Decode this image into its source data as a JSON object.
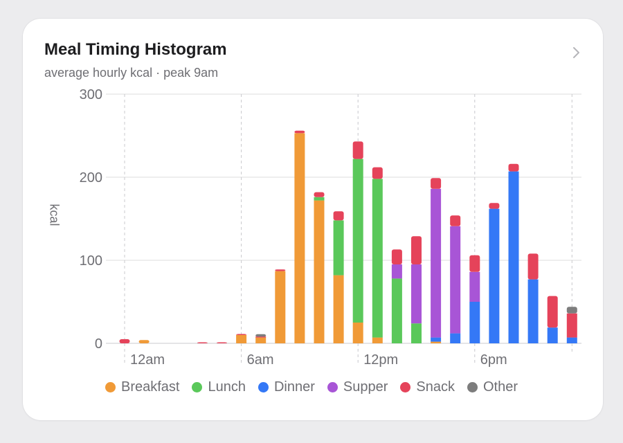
{
  "card": {
    "title": "Meal Timing Histogram",
    "subtitle": "average hourly kcal · peak 9am"
  },
  "chart_data": {
    "type": "bar",
    "stacked": true,
    "title": "Meal Timing Histogram",
    "subtitle": "average hourly kcal · peak 9am",
    "ylabel": "kcal",
    "xlabel": "",
    "ylim": [
      0,
      300
    ],
    "yticks": [
      0,
      100,
      200,
      300
    ],
    "xtick_labels": [
      {
        "hour": 0,
        "label": "12am"
      },
      {
        "hour": 6,
        "label": "6am"
      },
      {
        "hour": 12,
        "label": "12pm"
      },
      {
        "hour": 18,
        "label": "6pm"
      }
    ],
    "grid": true,
    "legend_position": "bottom",
    "hours": [
      0,
      1,
      2,
      3,
      4,
      5,
      6,
      7,
      8,
      9,
      10,
      11,
      12,
      13,
      14,
      15,
      16,
      17,
      18,
      19,
      20,
      21,
      22,
      23
    ],
    "series": [
      {
        "name": "Breakfast",
        "color": "#f09a37",
        "values": [
          0,
          4,
          0,
          0,
          0,
          0,
          10,
          7,
          87,
          253,
          172,
          82,
          25,
          7,
          0,
          0,
          2,
          0,
          0,
          0,
          0,
          0,
          0,
          0
        ]
      },
      {
        "name": "Lunch",
        "color": "#5ac85a",
        "values": [
          0,
          0,
          0,
          0,
          0,
          0,
          0,
          0,
          0,
          0,
          4,
          66,
          197,
          191,
          78,
          24,
          0,
          0,
          0,
          0,
          0,
          0,
          0,
          0
        ]
      },
      {
        "name": "Dinner",
        "color": "#3478f6",
        "values": [
          0,
          0,
          0,
          0,
          0,
          0,
          0,
          0,
          0,
          0,
          0,
          0,
          0,
          0,
          0,
          0,
          5,
          12,
          50,
          162,
          207,
          77,
          19,
          7
        ]
      },
      {
        "name": "Supper",
        "color": "#a855d6",
        "values": [
          0,
          0,
          0,
          0,
          0,
          0,
          0,
          0,
          0,
          0,
          0,
          0,
          0,
          0,
          17,
          71,
          179,
          129,
          36,
          0,
          0,
          0,
          0,
          0
        ]
      },
      {
        "name": "Snack",
        "color": "#e5435a",
        "values": [
          5,
          0,
          0,
          0,
          1,
          1,
          1,
          1,
          2,
          3,
          6,
          11,
          21,
          14,
          18,
          34,
          13,
          13,
          20,
          7,
          9,
          31,
          38,
          29
        ]
      },
      {
        "name": "Other",
        "color": "#7d7d7d",
        "values": [
          0,
          0,
          0,
          0,
          0,
          0,
          0,
          3,
          0,
          0,
          0,
          0,
          0,
          0,
          0,
          0,
          0,
          0,
          0,
          0,
          0,
          0,
          0,
          8
        ]
      }
    ]
  }
}
